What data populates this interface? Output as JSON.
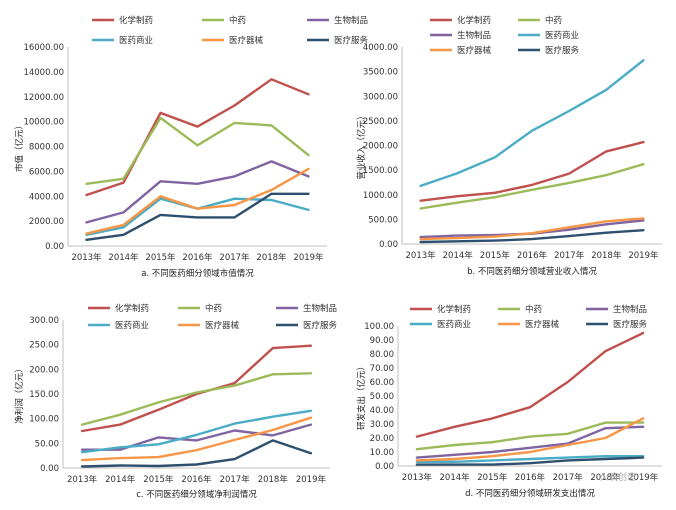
{
  "watermark": "火石创造",
  "chart_data": [
    {
      "type": "line",
      "caption": "a. 不同医药细分领域市值情况",
      "ylabel": "市值（亿元）",
      "x": [
        "2013年",
        "2014年",
        "2015年",
        "2016年",
        "2017年",
        "2018年",
        "2019年"
      ],
      "ylim": [
        0,
        16000
      ],
      "yticks": [
        "0.00",
        "2000.00",
        "4000.00",
        "6000.00",
        "8000.00",
        "10000.00",
        "12000.00",
        "14000.00",
        "16000.00"
      ],
      "legend_cols": 3,
      "series": [
        {
          "name": "化学制药",
          "color": "#c0504d",
          "values": [
            4100,
            5100,
            10700,
            9600,
            11300,
            13400,
            12200
          ]
        },
        {
          "name": "中药",
          "color": "#9bbb59",
          "values": [
            5000,
            5400,
            10300,
            8100,
            9900,
            9700,
            7300
          ]
        },
        {
          "name": "生物制品",
          "color": "#8064a2",
          "values": [
            1900,
            2700,
            5200,
            5000,
            5600,
            6800,
            5600
          ]
        },
        {
          "name": "医药商业",
          "color": "#4bacc6",
          "values": [
            900,
            1500,
            3800,
            3000,
            3800,
            3700,
            2900
          ]
        },
        {
          "name": "医疗器械",
          "color": "#f79646",
          "values": [
            1000,
            1700,
            4000,
            3000,
            3300,
            4500,
            6200
          ]
        },
        {
          "name": "医疗服务",
          "color": "#2f4f6f",
          "values": [
            500,
            900,
            2500,
            2300,
            2300,
            4200,
            4200
          ]
        }
      ]
    },
    {
      "type": "line",
      "caption": "b. 不同医药细分领域营业收入情况",
      "ylabel": "营业收入（亿元）",
      "x": [
        "2013年",
        "2014年",
        "2015年",
        "2016年",
        "2017年",
        "2018年",
        "2019年"
      ],
      "ylim": [
        0,
        4000
      ],
      "yticks": [
        "0.00",
        "500.00",
        "1000.00",
        "1500.00",
        "2000.00",
        "2500.00",
        "3000.00",
        "3500.00",
        "4000.00"
      ],
      "legend_cols": 2,
      "series": [
        {
          "name": "化学制药",
          "color": "#c0504d",
          "values": [
            880,
            970,
            1040,
            1200,
            1430,
            1880,
            2070
          ]
        },
        {
          "name": "中药",
          "color": "#9bbb59",
          "values": [
            720,
            840,
            950,
            1100,
            1240,
            1400,
            1620
          ]
        },
        {
          "name": "生物制品",
          "color": "#8064a2",
          "values": [
            140,
            170,
            180,
            210,
            290,
            400,
            480
          ]
        },
        {
          "name": "医药商业",
          "color": "#4bacc6",
          "values": [
            1180,
            1440,
            1760,
            2300,
            2700,
            3130,
            3730
          ]
        },
        {
          "name": "医疗器械",
          "color": "#f79646",
          "values": [
            100,
            120,
            150,
            220,
            340,
            460,
            520
          ]
        },
        {
          "name": "医疗服务",
          "color": "#2f4f6f",
          "values": [
            40,
            55,
            70,
            100,
            160,
            230,
            280
          ]
        }
      ]
    },
    {
      "type": "line",
      "caption": "c. 不同医药细分领域净利润情况",
      "ylabel": "净利润（亿元）",
      "x": [
        "2013年",
        "2014年",
        "2015年",
        "2016年",
        "2017年",
        "2018年",
        "2019年"
      ],
      "ylim": [
        0,
        300
      ],
      "yticks": [
        "0.00",
        "50.00",
        "100.00",
        "150.00",
        "200.00",
        "250.00",
        "300.00"
      ],
      "legend_cols": 3,
      "series": [
        {
          "name": "化学制药",
          "color": "#c0504d",
          "values": [
            75,
            88,
            118,
            150,
            172,
            243,
            248
          ]
        },
        {
          "name": "中药",
          "color": "#9bbb59",
          "values": [
            88,
            108,
            133,
            153,
            167,
            190,
            192
          ]
        },
        {
          "name": "生物制品",
          "color": "#8064a2",
          "values": [
            37,
            37,
            62,
            56,
            76,
            66,
            88
          ]
        },
        {
          "name": "医药商业",
          "color": "#4bacc6",
          "values": [
            32,
            42,
            48,
            67,
            90,
            104,
            116
          ]
        },
        {
          "name": "医疗器械",
          "color": "#f79646",
          "values": [
            16,
            20,
            22,
            36,
            57,
            77,
            102
          ]
        },
        {
          "name": "医疗服务",
          "color": "#2f4f6f",
          "values": [
            3,
            5,
            4,
            7,
            18,
            56,
            30
          ]
        }
      ]
    },
    {
      "type": "line",
      "caption": "d. 不同医药细分领域研发支出情况",
      "ylabel": "研发支出（亿元）",
      "x": [
        "2013年",
        "2014年",
        "2015年",
        "2016年",
        "2017年",
        "2018年",
        "2019年"
      ],
      "ylim": [
        0,
        100
      ],
      "yticks": [
        "0.00",
        "10.00",
        "20.00",
        "30.00",
        "40.00",
        "50.00",
        "60.00",
        "70.00",
        "80.00",
        "90.00",
        "100.00"
      ],
      "legend_cols": 3,
      "series": [
        {
          "name": "化学制药",
          "color": "#c0504d",
          "values": [
            21,
            28,
            34,
            42,
            60,
            82,
            95
          ]
        },
        {
          "name": "中药",
          "color": "#9bbb59",
          "values": [
            12,
            15,
            17,
            21,
            23,
            31,
            31
          ]
        },
        {
          "name": "生物制品",
          "color": "#8064a2",
          "values": [
            6,
            8,
            10,
            13,
            16,
            27,
            28
          ]
        },
        {
          "name": "医药商业",
          "color": "#4bacc6",
          "values": [
            3,
            3,
            4,
            5,
            6,
            7,
            7
          ]
        },
        {
          "name": "医疗器械",
          "color": "#f79646",
          "values": [
            4,
            5,
            7,
            10,
            15,
            20,
            34
          ]
        },
        {
          "name": "医疗服务",
          "color": "#2f4f6f",
          "values": [
            1,
            1,
            1,
            2,
            4,
            5,
            6
          ]
        }
      ]
    }
  ]
}
